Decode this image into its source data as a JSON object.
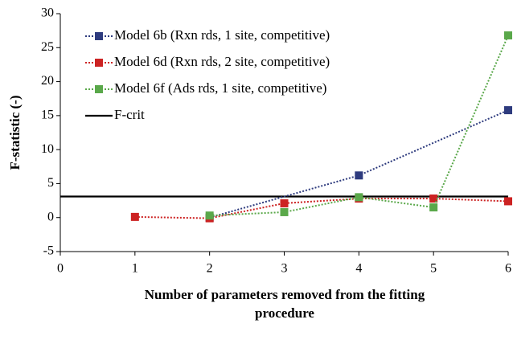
{
  "chart_data": {
    "type": "line",
    "ylabel": "F-statistic (-)",
    "xlabel": [
      "Number of parameters removed from the fitting",
      "procedure"
    ],
    "xlim": [
      0,
      6
    ],
    "xticks": [
      0,
      1,
      2,
      3,
      4,
      5,
      6
    ],
    "ylim": [
      -5,
      30
    ],
    "yticks": [
      -5,
      0,
      5,
      10,
      15,
      20,
      25,
      30
    ],
    "legend": "upper left",
    "series": [
      {
        "name": "Model 6b (Rxn rds, 1 site, competitive)",
        "color": "#2e3b7e",
        "x": [
          2,
          4,
          6
        ],
        "values": [
          0,
          6.2,
          15.8
        ]
      },
      {
        "name": "Model 6d (Rxn rds, 2 site, competitive)",
        "color": "#cc2222",
        "x": [
          1,
          2,
          3,
          4,
          5,
          6
        ],
        "values": [
          0.1,
          -0.1,
          2.1,
          2.8,
          2.8,
          2.4
        ]
      },
      {
        "name": "Model 6f (Ads rds, 1 site, competitive)",
        "color": "#5aa84a",
        "x": [
          2,
          3,
          4,
          5,
          6
        ],
        "values": [
          0.3,
          0.8,
          3.0,
          1.5,
          26.8
        ]
      }
    ],
    "reference": {
      "name": "F-crit",
      "value": 3.1,
      "color": "#000000"
    }
  }
}
